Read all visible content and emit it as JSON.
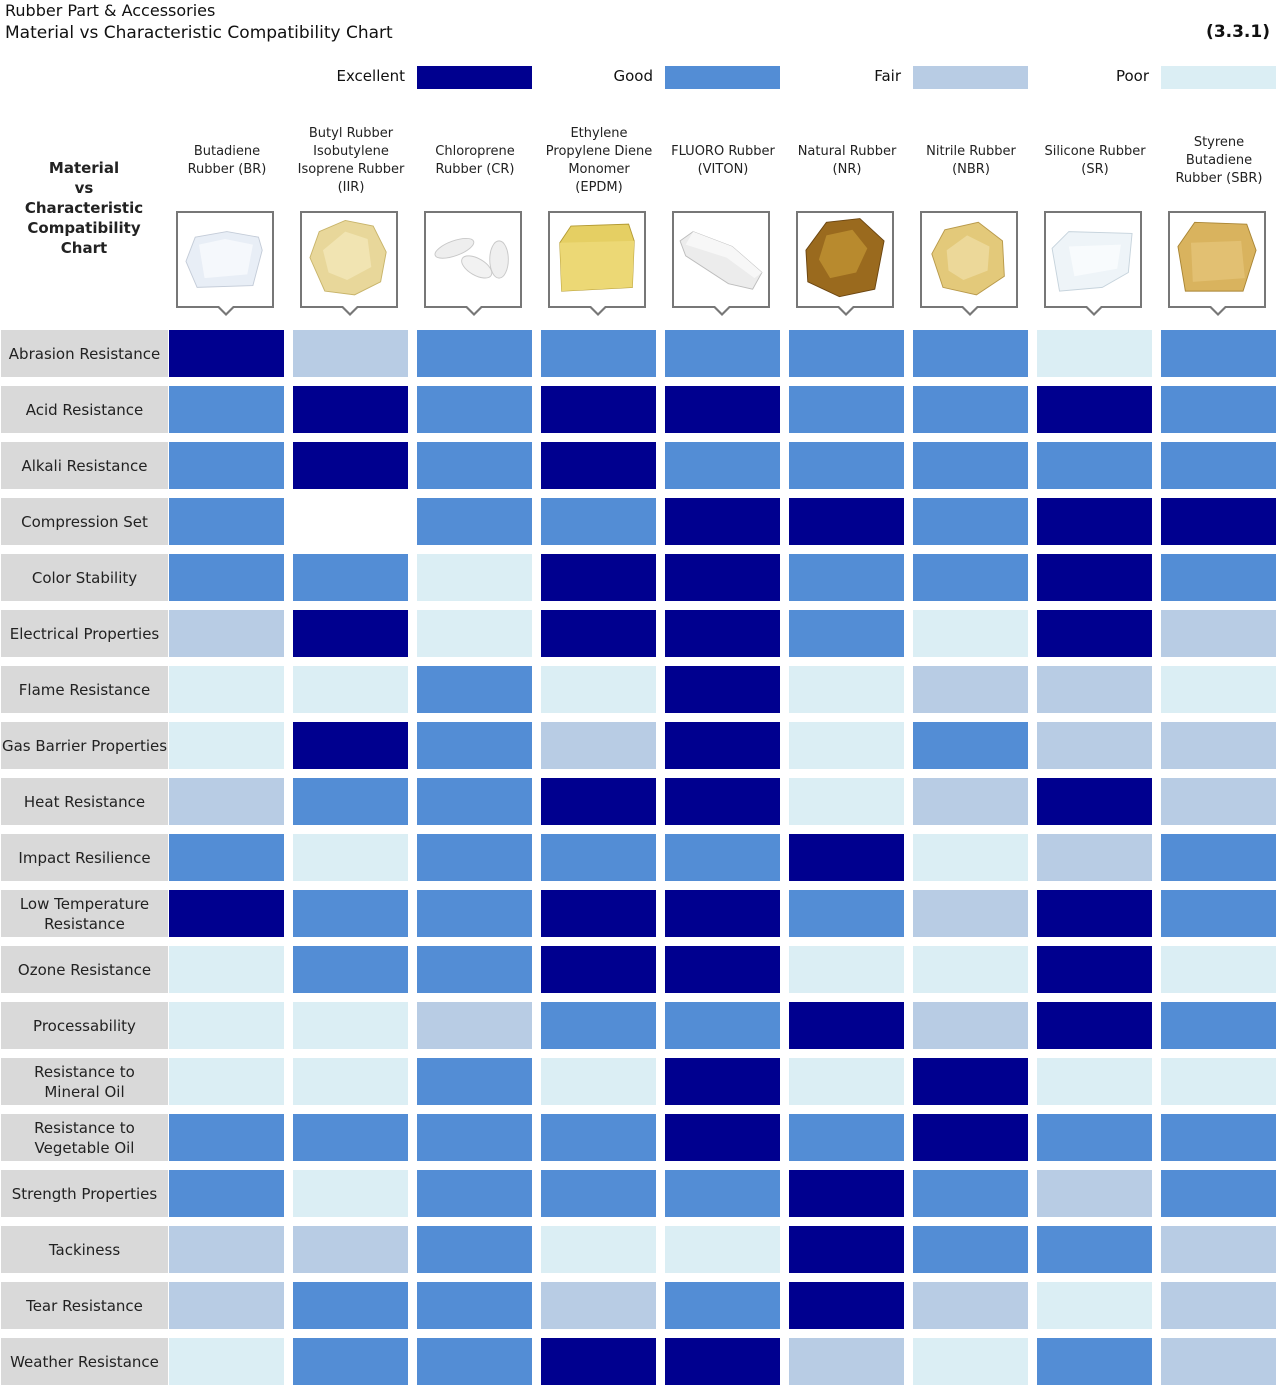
{
  "header": {
    "title_line1": "Rubber Part & Accessories",
    "title_line2": "Material vs Characteristic Compatibility Chart",
    "code": "(3.3.1)"
  },
  "legend": [
    {
      "label": "Excellent",
      "color": "#00008f"
    },
    {
      "label": "Good",
      "color": "#538dd5"
    },
    {
      "label": "Fair",
      "color": "#b8cce4"
    },
    {
      "label": "Poor",
      "color": "#dbeef4"
    }
  ],
  "corner_label": [
    "Material",
    "vs",
    "Characteristic",
    "Compatibility",
    "Chart"
  ],
  "chart_data": {
    "type": "table",
    "title": "Material vs Characteristic Compatibility Chart",
    "scale": [
      "Excellent",
      "Good",
      "Fair",
      "Poor"
    ],
    "materials": [
      {
        "lines": [
          "Butadiene",
          "Rubber (BR)"
        ],
        "icon": "clear-crystal-image"
      },
      {
        "lines": [
          "Butyl Rubber",
          "Isobutylene",
          "Isoprene Rubber",
          "(IIR)"
        ],
        "icon": "pale-yellow-lump-image"
      },
      {
        "lines": [
          "Chloroprene",
          "Rubber (CR)"
        ],
        "icon": "white-chips-image"
      },
      {
        "lines": [
          "Ethylene",
          "Propylene Diene",
          "Monomer",
          "(EPDM)"
        ],
        "icon": "yellow-block-image"
      },
      {
        "lines": [
          "FLUORO Rubber",
          "(VITON)"
        ],
        "icon": "white-slab-image"
      },
      {
        "lines": [
          "Natural Rubber",
          "(NR)"
        ],
        "icon": "brown-chunk-image"
      },
      {
        "lines": [
          "Nitrile Rubber",
          "(NBR)"
        ],
        "icon": "yellow-chunk-image"
      },
      {
        "lines": [
          "Silicone Rubber",
          "(SR)"
        ],
        "icon": "translucent-sheet-image"
      },
      {
        "lines": [
          "Styrene",
          "Butadiene",
          "Rubber (SBR)"
        ],
        "icon": "tan-square-image"
      }
    ],
    "characteristics": [
      {
        "lines": [
          "Abrasion Resistance"
        ],
        "ratings": [
          "Excellent",
          "Fair",
          "Good",
          "Good",
          "Good",
          "Good",
          "Good",
          "Poor",
          "Good"
        ]
      },
      {
        "lines": [
          "Acid Resistance"
        ],
        "ratings": [
          "Good",
          "Excellent",
          "Good",
          "Excellent",
          "Excellent",
          "Good",
          "Good",
          "Excellent",
          "Good"
        ]
      },
      {
        "lines": [
          "Alkali Resistance"
        ],
        "ratings": [
          "Good",
          "Excellent",
          "Good",
          "Excellent",
          "Good",
          "Good",
          "Good",
          "Good",
          "Good"
        ]
      },
      {
        "lines": [
          "Compression Set"
        ],
        "ratings": [
          "Good",
          null,
          "Good",
          "Good",
          "Excellent",
          "Excellent",
          "Good",
          "Excellent",
          "Excellent"
        ]
      },
      {
        "lines": [
          "Color Stability"
        ],
        "ratings": [
          "Good",
          "Good",
          "Poor",
          "Excellent",
          "Excellent",
          "Good",
          "Good",
          "Excellent",
          "Good"
        ]
      },
      {
        "lines": [
          "Electrical Properties"
        ],
        "ratings": [
          "Fair",
          "Excellent",
          "Poor",
          "Excellent",
          "Excellent",
          "Good",
          "Poor",
          "Excellent",
          "Fair"
        ]
      },
      {
        "lines": [
          "Flame Resistance"
        ],
        "ratings": [
          "Poor",
          "Poor",
          "Good",
          "Poor",
          "Excellent",
          "Poor",
          "Fair",
          "Fair",
          "Poor"
        ]
      },
      {
        "lines": [
          "Gas Barrier Properties"
        ],
        "ratings": [
          "Poor",
          "Excellent",
          "Good",
          "Fair",
          "Excellent",
          "Poor",
          "Good",
          "Fair",
          "Fair"
        ]
      },
      {
        "lines": [
          "Heat Resistance"
        ],
        "ratings": [
          "Fair",
          "Good",
          "Good",
          "Excellent",
          "Excellent",
          "Poor",
          "Fair",
          "Excellent",
          "Fair"
        ]
      },
      {
        "lines": [
          "Impact Resilience"
        ],
        "ratings": [
          "Good",
          "Poor",
          "Good",
          "Good",
          "Good",
          "Excellent",
          "Poor",
          "Fair",
          "Good"
        ]
      },
      {
        "lines": [
          "Low Temperature",
          "Resistance"
        ],
        "ratings": [
          "Excellent",
          "Good",
          "Good",
          "Excellent",
          "Excellent",
          "Good",
          "Fair",
          "Excellent",
          "Good"
        ]
      },
      {
        "lines": [
          "Ozone Resistance"
        ],
        "ratings": [
          "Poor",
          "Good",
          "Good",
          "Excellent",
          "Excellent",
          "Poor",
          "Poor",
          "Excellent",
          "Poor"
        ]
      },
      {
        "lines": [
          "Processability"
        ],
        "ratings": [
          "Poor",
          "Poor",
          "Fair",
          "Good",
          "Good",
          "Excellent",
          "Fair",
          "Excellent",
          "Good"
        ]
      },
      {
        "lines": [
          "Resistance to",
          "Mineral Oil"
        ],
        "ratings": [
          "Poor",
          "Poor",
          "Good",
          "Poor",
          "Excellent",
          "Poor",
          "Excellent",
          "Poor",
          "Poor"
        ]
      },
      {
        "lines": [
          "Resistance to",
          "Vegetable Oil"
        ],
        "ratings": [
          "Good",
          "Good",
          "Good",
          "Good",
          "Excellent",
          "Good",
          "Excellent",
          "Good",
          "Good"
        ]
      },
      {
        "lines": [
          "Strength Properties"
        ],
        "ratings": [
          "Good",
          "Poor",
          "Good",
          "Good",
          "Good",
          "Excellent",
          "Good",
          "Fair",
          "Good"
        ]
      },
      {
        "lines": [
          "Tackiness"
        ],
        "ratings": [
          "Fair",
          "Fair",
          "Good",
          "Poor",
          "Poor",
          "Excellent",
          "Good",
          "Good",
          "Fair"
        ]
      },
      {
        "lines": [
          "Tear Resistance"
        ],
        "ratings": [
          "Fair",
          "Good",
          "Good",
          "Fair",
          "Good",
          "Excellent",
          "Fair",
          "Poor",
          "Fair"
        ]
      },
      {
        "lines": [
          "Weather Resistance"
        ],
        "ratings": [
          "Poor",
          "Good",
          "Good",
          "Excellent",
          "Excellent",
          "Fair",
          "Poor",
          "Good",
          "Fair"
        ]
      }
    ]
  }
}
